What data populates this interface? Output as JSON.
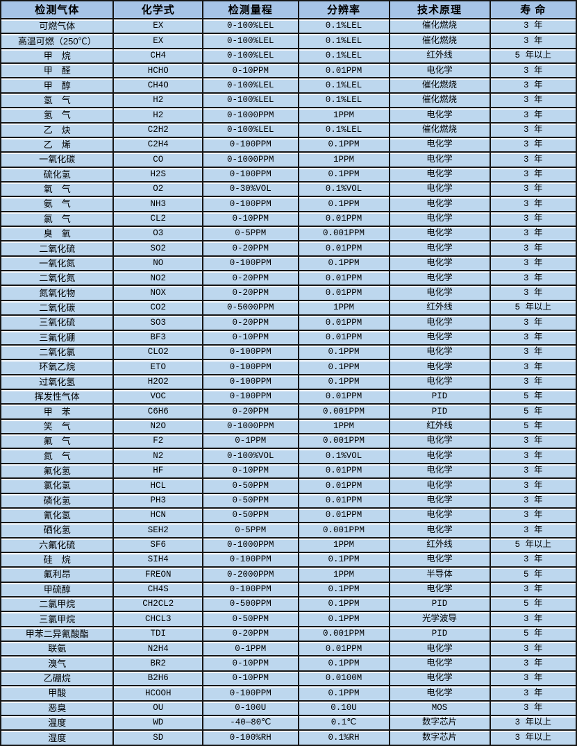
{
  "colors": {
    "header_bg": "#a6c4e7",
    "row_bg": "#bdd7ee",
    "border": "#161616"
  },
  "table": {
    "columns": [
      "检测气体",
      "化学式",
      "检测量程",
      "分辨率",
      "技术原理",
      "寿 命"
    ],
    "rows": [
      [
        "可燃气体",
        "EX",
        "0-100%LEL",
        "0.1%LEL",
        "催化燃烧",
        "3 年"
      ],
      [
        "高温可燃（250℃）",
        "EX",
        "0-100%LEL",
        "0.1%LEL",
        "催化燃烧",
        "3 年"
      ],
      [
        "甲　烷",
        "CH4",
        "0-100%LEL",
        "0.1%LEL",
        "红外线",
        "5 年以上"
      ],
      [
        "甲　醛",
        "HCHO",
        "0-10PPM",
        "0.01PPM",
        "电化学",
        "3 年"
      ],
      [
        "甲　醇",
        "CH4O",
        "0-100%LEL",
        "0.1%LEL",
        "催化燃烧",
        "3 年"
      ],
      [
        "氢　气",
        "H2",
        "0-100%LEL",
        "0.1%LEL",
        "催化燃烧",
        "3 年"
      ],
      [
        "氢　气",
        "H2",
        "0-1000PPM",
        "1PPM",
        "电化学",
        "3 年"
      ],
      [
        "乙　炔",
        "C2H2",
        "0-100%LEL",
        "0.1%LEL",
        "催化燃烧",
        "3 年"
      ],
      [
        "乙　烯",
        "C2H4",
        "0-100PPM",
        "0.1PPM",
        "电化学",
        "3 年"
      ],
      [
        "一氧化碳",
        "CO",
        "0-1000PPM",
        "1PPM",
        "电化学",
        "3 年"
      ],
      [
        "硫化氢",
        "H2S",
        "0-100PPM",
        "0.1PPM",
        "电化学",
        "3 年"
      ],
      [
        "氧　气",
        "O2",
        "0-30%VOL",
        "0.1%VOL",
        "电化学",
        "3 年"
      ],
      [
        "氨　气",
        "NH3",
        "0-100PPM",
        "0.1PPM",
        "电化学",
        "3 年"
      ],
      [
        "氯　气",
        "CL2",
        "0-10PPM",
        "0.01PPM",
        "电化学",
        "3 年"
      ],
      [
        "臭　氧",
        "O3",
        "0-5PPM",
        "0.001PPM",
        "电化学",
        "3 年"
      ],
      [
        "二氧化硫",
        "SO2",
        "0-20PPM",
        "0.01PPM",
        "电化学",
        "3 年"
      ],
      [
        "一氧化氮",
        "NO",
        "0-100PPM",
        "0.1PPM",
        "电化学",
        "3 年"
      ],
      [
        "二氧化氮",
        "NO2",
        "0-20PPM",
        "0.01PPM",
        "电化学",
        "3 年"
      ],
      [
        "氮氧化物",
        "NOX",
        "0-20PPM",
        "0.01PPM",
        "电化学",
        "3 年"
      ],
      [
        "二氧化碳",
        "CO2",
        "0-5000PPM",
        "1PPM",
        "红外线",
        "5 年以上"
      ],
      [
        "三氧化硫",
        "SO3",
        "0-20PPM",
        "0.01PPM",
        "电化学",
        "3 年"
      ],
      [
        "三氟化硼",
        "BF3",
        "0-10PPM",
        "0.01PPM",
        "电化学",
        "3 年"
      ],
      [
        "二氧化氯",
        "CLO2",
        "0-100PPM",
        "0.1PPM",
        "电化学",
        "3 年"
      ],
      [
        "环氧乙烷",
        "ETO",
        "0-100PPM",
        "0.1PPM",
        "电化学",
        "3 年"
      ],
      [
        "过氧化氢",
        "H2O2",
        "0-100PPM",
        "0.1PPM",
        "电化学",
        "3 年"
      ],
      [
        "挥发性气体",
        "VOC",
        "0-100PPM",
        "0.01PPM",
        "PID",
        "5 年"
      ],
      [
        "甲　苯",
        "C6H6",
        "0-20PPM",
        "0.001PPM",
        "PID",
        "5 年"
      ],
      [
        "笑　气",
        "N2O",
        "0-1000PPM",
        "1PPM",
        "红外线",
        "5 年"
      ],
      [
        "氟　气",
        "F2",
        "0-1PPM",
        "0.001PPM",
        "电化学",
        "3 年"
      ],
      [
        "氮　气",
        "N2",
        "0-100%VOL",
        "0.1%VOL",
        "电化学",
        "3 年"
      ],
      [
        "氟化氢",
        "HF",
        "0-10PPM",
        "0.01PPM",
        "电化学",
        "3 年"
      ],
      [
        "氯化氢",
        "HCL",
        "0-50PPM",
        "0.01PPM",
        "电化学",
        "3 年"
      ],
      [
        "磷化氢",
        "PH3",
        "0-50PPM",
        "0.01PPM",
        "电化学",
        "3 年"
      ],
      [
        "氰化氢",
        "HCN",
        "0-50PPM",
        "0.01PPM",
        "电化学",
        "3 年"
      ],
      [
        "硒化氢",
        "SEH2",
        "0-5PPM",
        "0.001PPM",
        "电化学",
        "3 年"
      ],
      [
        "六氟化硫",
        "SF6",
        "0-1000PPM",
        "1PPM",
        "红外线",
        "5 年以上"
      ],
      [
        "硅　烷",
        "SIH4",
        "0-100PPM",
        "0.1PPM",
        "电化学",
        "3 年"
      ],
      [
        "氟利昂",
        "FREON",
        "0-2000PPM",
        "1PPM",
        "半导体",
        "5 年"
      ],
      [
        "甲硫醇",
        "CH4S",
        "0-100PPM",
        "0.1PPM",
        "电化学",
        "3 年"
      ],
      [
        "二氯甲烷",
        "CH2CL2",
        "0-500PPM",
        "0.1PPM",
        "PID",
        "5 年"
      ],
      [
        "三氯甲烷",
        "CHCL3",
        "0-50PPM",
        "0.1PPM",
        "光学波导",
        "3 年"
      ],
      [
        "甲苯二异氰酸酯",
        "TDI",
        "0-20PPM",
        "0.001PPM",
        "PID",
        "5 年"
      ],
      [
        "联氨",
        "N2H4",
        "0-1PPM",
        "0.01PPM",
        "电化学",
        "3 年"
      ],
      [
        "溴气",
        "BR2",
        "0-10PPM",
        "0.1PPM",
        "电化学",
        "3 年"
      ],
      [
        "乙硼烷",
        "B2H6",
        "0-10PPM",
        "0.0100M",
        "电化学",
        "3 年"
      ],
      [
        "甲酸",
        "HCOOH",
        "0-100PPM",
        "0.1PPM",
        "电化学",
        "3 年"
      ],
      [
        "恶臭",
        "OU",
        "0-100U",
        "0.10U",
        "MOS",
        "3 年"
      ],
      [
        "温度",
        "WD",
        "-40—80℃",
        "0.1℃",
        "数字芯片",
        "3 年以上"
      ],
      [
        "湿度",
        "SD",
        "0-100%RH",
        "0.1%RH",
        "数字芯片",
        "3 年以上"
      ]
    ]
  }
}
